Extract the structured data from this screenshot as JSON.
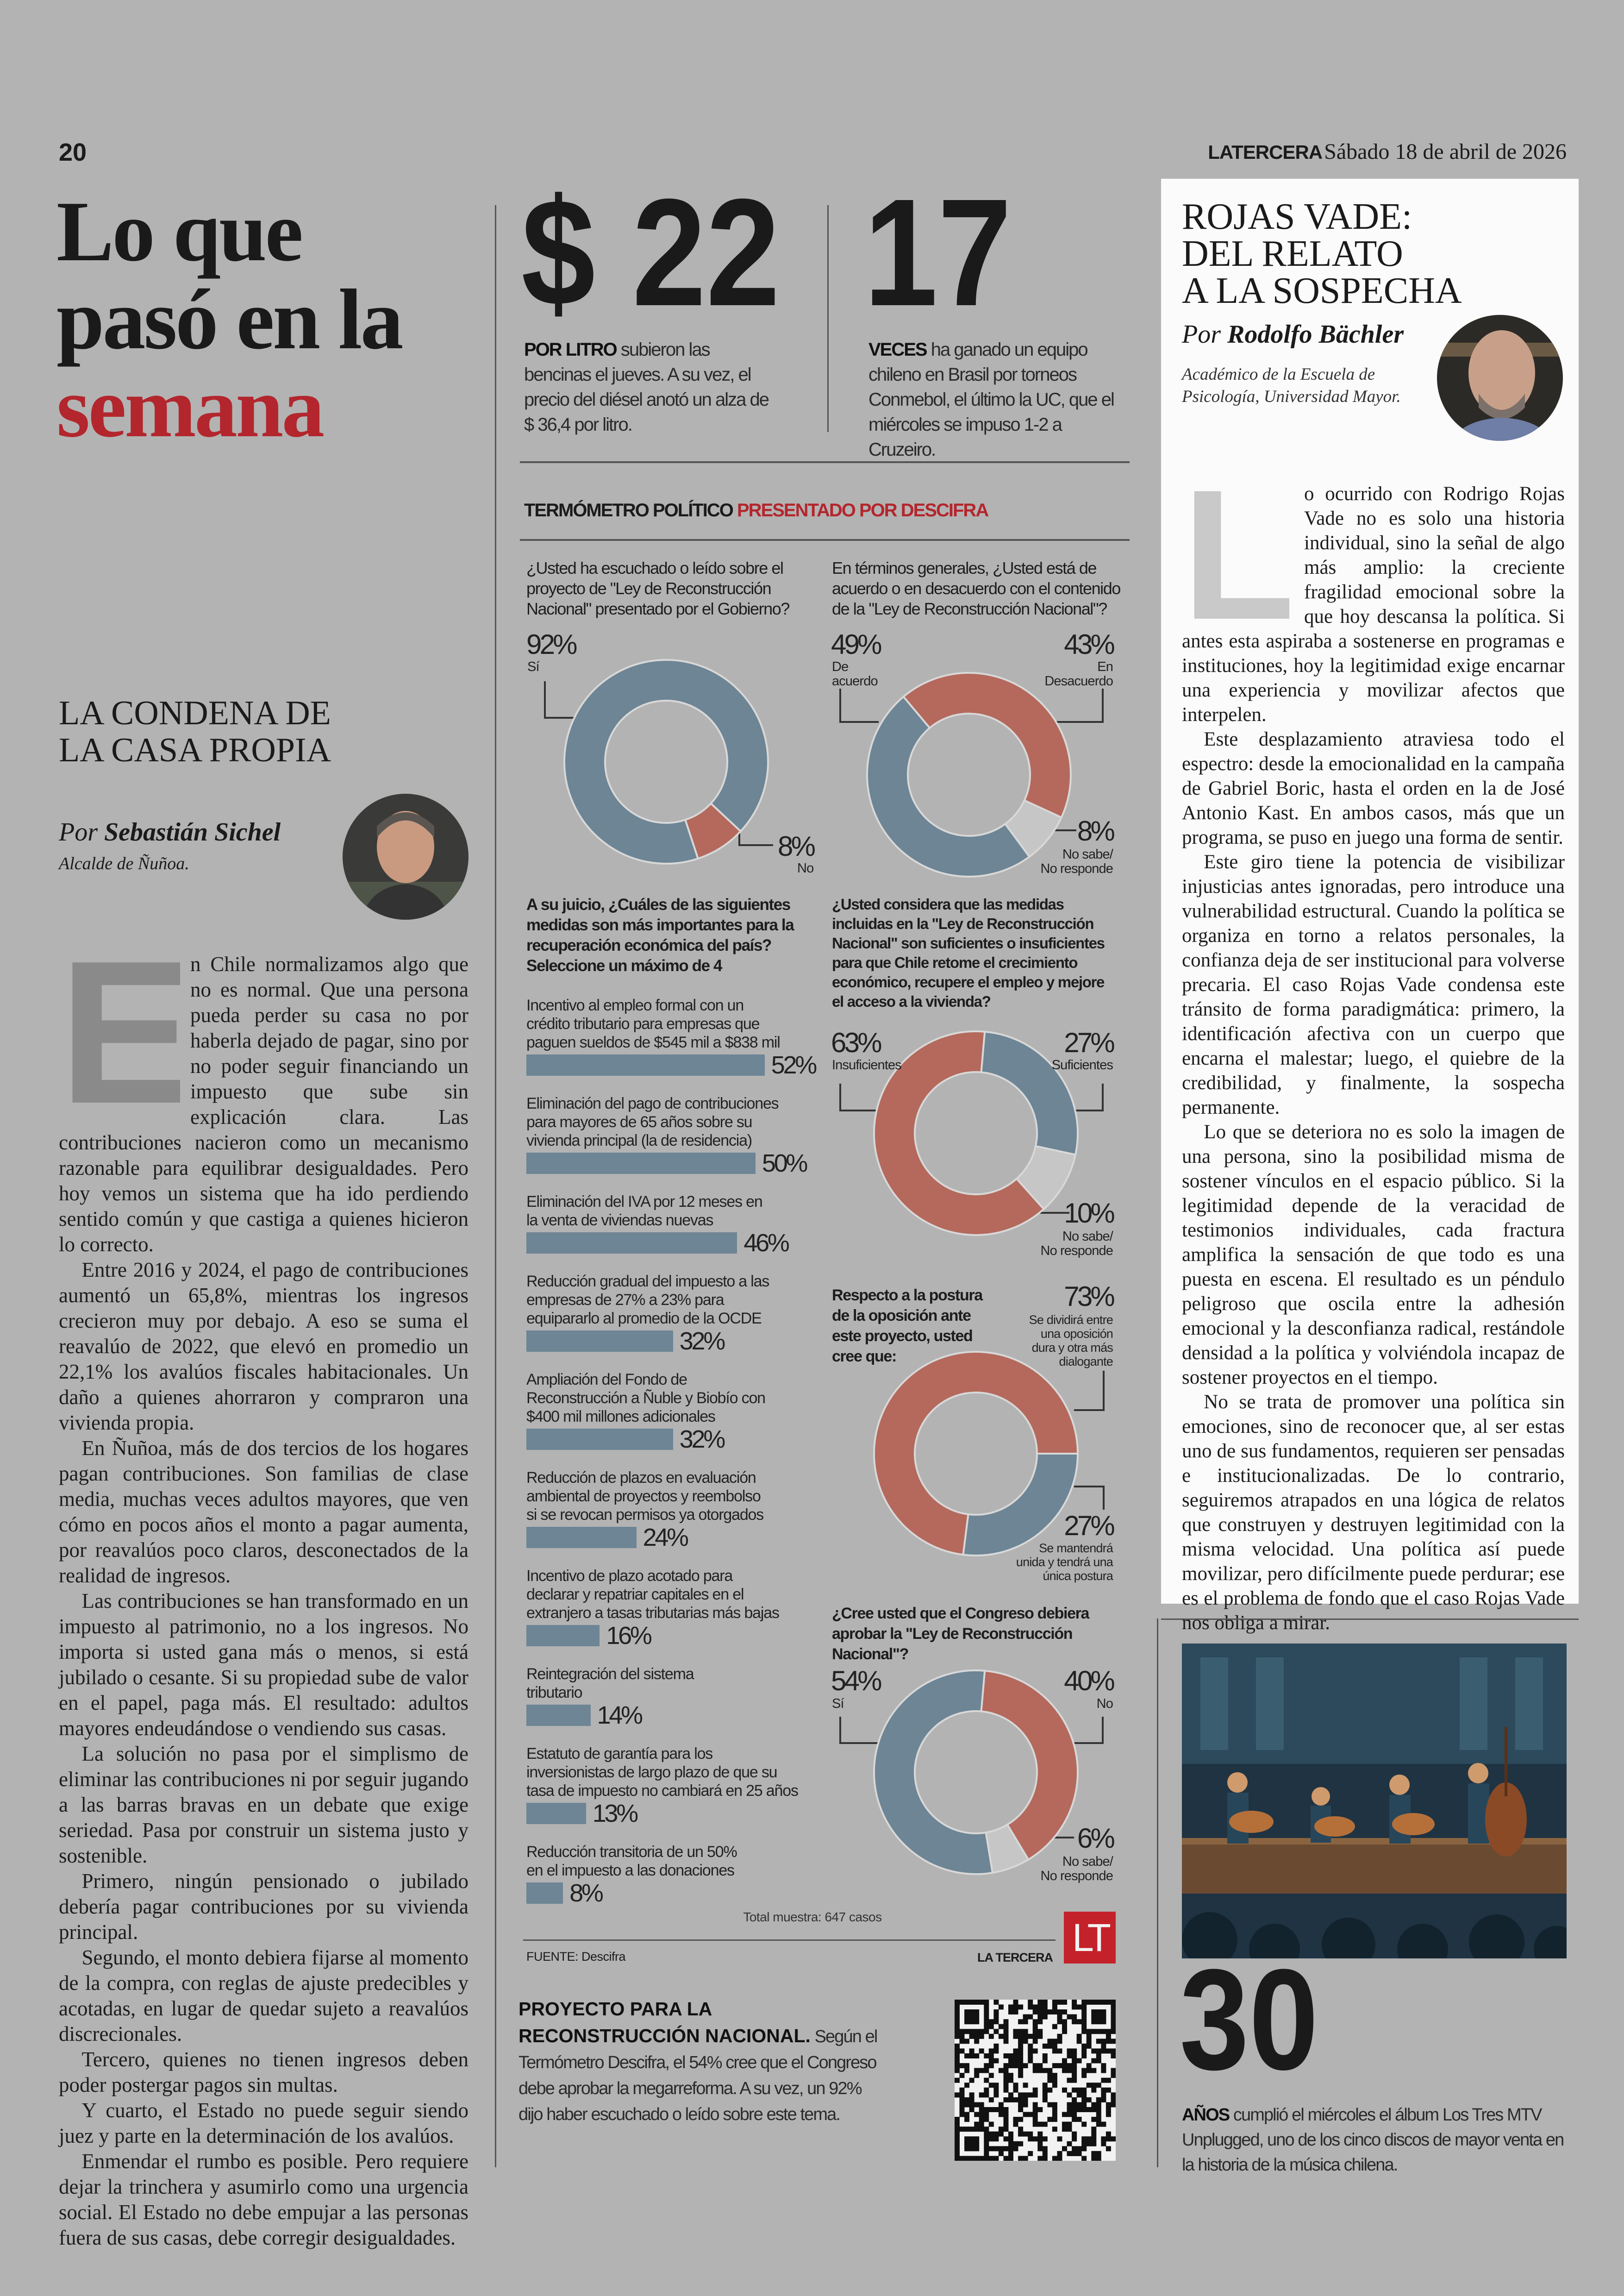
{
  "header": {
    "page_number": "20",
    "brand": "LATERCERA",
    "date": "Sábado 18 de abril de 2026"
  },
  "section_title": {
    "line1": "Lo que",
    "line2": "pasó en la",
    "line3": "semana",
    "accent_color": "#b3262d"
  },
  "column_left": {
    "headline": "LA CONDENA DE\nLA CASA PROPIA",
    "byline_prefix": "Por",
    "author": "Sebastián Sichel",
    "role": "Alcalde de Ñuñoa.",
    "dropcap": "E",
    "paragraphs": [
      "n Chile normalizamos algo que no es normal. Que una persona pueda perder su casa no por haberla dejado de pagar, sino por no poder seguir financiando un impuesto que sube sin explicación clara. Las contribuciones nacieron como un mecanismo razonable para equilibrar desigualdades. Pero hoy vemos un sistema que ha ido perdiendo sentido común y que castiga a quienes hicieron lo correcto.",
      "Entre 2016 y 2024, el pago de contribuciones aumentó un 65,8%, mientras los ingresos crecieron muy por debajo. A eso se suma el reavalúo de 2022, que elevó en promedio un 22,1% los avalúos fiscales habitacionales. Un daño a quienes ahorraron y compraron una vivienda propia.",
      "En Ñuñoa, más de dos tercios de los hogares pagan contribuciones. Son familias de clase media, muchas veces adultos mayores, que ven cómo en pocos años el monto a pagar aumenta, por reavalúos poco claros, desconectados de la realidad de ingresos.",
      "Las contribuciones se han transformado en un impuesto al patrimonio, no a los ingresos. No importa si usted gana más o menos, si está jubilado o cesante. Si su propiedad sube de valor en el papel, paga más. El resultado: adultos mayores endeudándose o vendiendo sus casas.",
      "La solución no pasa por el simplismo de eliminar las contribuciones ni por seguir jugando a las barras bravas en un debate que exige seriedad. Pasa por construir un sistema justo y sostenible.",
      "Primero, ningún pensionado o jubilado debería pagar contribuciones por su vivienda principal.",
      "Segundo, el monto debiera fijarse al momento de la compra, con reglas de ajuste predecibles y acotadas, en lugar de quedar sujeto a reavalúos discrecionales.",
      "Tercero, quienes no tienen ingresos deben poder postergar pagos sin multas.",
      "Y cuarto, el Estado no puede seguir siendo juez y parte en la determinación de los avalúos.",
      "Enmendar el rumbo es posible. Pero requiere dejar la trinchera y asumirlo como una urgencia social. El Estado no debe empujar a las personas fuera de sus casas, debe corregir desigualdades."
    ]
  },
  "stats": [
    {
      "number": "$ 22",
      "lead": "POR LITRO",
      "text": " subieron las bencinas el jueves. A su vez, el precio del diésel anotó un alza de $ 36,4 por litro."
    },
    {
      "number": "17",
      "lead": "VECES",
      "text": " ha ganado un equipo chileno en Brasil por torneos Conmebol, el último la UC, que el miércoles se impuso 1-2 a Cruzeiro."
    }
  ],
  "infographic": {
    "title": "TERMÓMETRO POLÍTICO",
    "title_accent": "PRESENTADO POR DESCIFRA",
    "sample": "Total muestra: 647 casos",
    "source": "FUENTE: Descifra",
    "publisher": "LA TERCERA",
    "logo_text": "LT",
    "colors": {
      "blue": "#6d8595",
      "red": "#b4695c",
      "gray": "#c6c6c6",
      "logo_red": "#c4222b"
    }
  },
  "chart_data": [
    {
      "type": "pie",
      "question": "¿Usted ha escuchado o leído sobre el\nproyecto de \"Ley de Reconstrucción\nNacional\" presentado por el Gobierno?",
      "slices": [
        {
          "label": "Sí",
          "value": 92,
          "value_label": "92%",
          "color": "#6d8595"
        },
        {
          "label": "No",
          "value": 8,
          "value_label": "8%",
          "color": "#b4695c"
        }
      ]
    },
    {
      "type": "pie",
      "question": "En términos generales, ¿Usted está de\nacuerdo o en desacuerdo con el contenido\nde la \"Ley de Reconstrucción Nacional\"?",
      "slices": [
        {
          "label": "De\nacuerdo",
          "value": 49,
          "value_label": "49%",
          "color": "#6d8595"
        },
        {
          "label": "En\nDesacuerdo",
          "value": 43,
          "value_label": "43%",
          "color": "#b4695c"
        },
        {
          "label": "No sabe/\nNo responde",
          "value": 8,
          "value_label": "8%",
          "color": "#c6c6c6"
        }
      ]
    },
    {
      "type": "bar",
      "question": "A su juicio, ¿Cuáles de las siguientes\nmedidas son más importantes para la\nrecuperación económica del país?\nSeleccione un máximo de 4",
      "unit": "%",
      "items": [
        {
          "label": "Incentivo al empleo formal con un\ncrédito tributario para empresas que\npaguen sueldos de $545 mil a $838 mil",
          "value": 52,
          "value_label": "52%"
        },
        {
          "label": "Eliminación del pago de contribuciones\npara mayores de 65 años sobre su\nvivienda principal (la de residencia)",
          "value": 50,
          "value_label": "50%"
        },
        {
          "label": "Eliminación del IVA por 12 meses en\nla venta de viviendas nuevas",
          "value": 46,
          "value_label": "46%"
        },
        {
          "label": "Reducción gradual del impuesto a las\nempresas de 27% a 23% para\nequipararlo al promedio de la OCDE",
          "value": 32,
          "value_label": "32%"
        },
        {
          "label": "Ampliación del Fondo de\nReconstrucción a Ñuble y Biobío con\n$400 mil millones adicionales",
          "value": 32,
          "value_label": "32%"
        },
        {
          "label": "Reducción de plazos en evaluación\nambiental de proyectos y reembolso\nsi se revocan permisos ya otorgados",
          "value": 24,
          "value_label": "24%"
        },
        {
          "label": "Incentivo de plazo acotado para\ndeclarar y repatriar capitales en el\nextranjero a tasas tributarias más bajas",
          "value": 16,
          "value_label": "16%"
        },
        {
          "label": "Reintegración del sistema\ntributario",
          "value": 14,
          "value_label": "14%"
        },
        {
          "label": "Estatuto de garantía para los\ninversionistas de largo plazo de que su\ntasa de impuesto no cambiará en 25 años",
          "value": 13,
          "value_label": "13%"
        },
        {
          "label": "Reducción transitoria de un 50%\nen el impuesto a las donaciones",
          "value": 8,
          "value_label": "8%"
        }
      ]
    },
    {
      "type": "pie",
      "question": "¿Usted considera que las medidas\nincluidas en la \"Ley de Reconstrucción\nNacional\" son suficientes o insuficientes\npara que Chile retome el crecimiento\neconómico, recupere el empleo y mejore\nel acceso a la vivienda?",
      "slices": [
        {
          "label": "Insuficientes",
          "value": 63,
          "value_label": "63%",
          "color": "#b4695c"
        },
        {
          "label": "Suficientes",
          "value": 27,
          "value_label": "27%",
          "color": "#6d8595"
        },
        {
          "label": "No sabe/\nNo responde",
          "value": 10,
          "value_label": "10%",
          "color": "#c6c6c6"
        }
      ]
    },
    {
      "type": "pie",
      "question": "Respecto a la postura\nde la oposición ante\neste proyecto, usted\ncree que:",
      "slices": [
        {
          "label": "Se dividirá entre\nuna oposición\ndura y otra más\ndialogante",
          "value": 73,
          "value_label": "73%",
          "color": "#b4695c"
        },
        {
          "label": "Se mantendrá\nunida y tendrá una\núnica postura",
          "value": 27,
          "value_label": "27%",
          "color": "#6d8595"
        }
      ]
    },
    {
      "type": "pie",
      "question": "¿Cree usted que el Congreso debiera\naprobar la \"Ley de Reconstrucción\nNacional\"?",
      "slices": [
        {
          "label": "Sí",
          "value": 54,
          "value_label": "54%",
          "color": "#6d8595"
        },
        {
          "label": "No",
          "value": 40,
          "value_label": "40%",
          "color": "#b4695c"
        },
        {
          "label": "No sabe/\nNo responde",
          "value": 6,
          "value_label": "6%",
          "color": "#c6c6c6"
        }
      ]
    }
  ],
  "bottom_note": {
    "lead": "PROYECTO PARA LA RECONSTRUCCIÓN NACIONAL.",
    "text": " Según el Termómetro Descifra, el 54% cree que el Congreso debe aprobar la megarreforma. A su vez, un 92% dijo haber escuchado o leído sobre este tema."
  },
  "column_right": {
    "headline": "ROJAS VADE:\nDEL RELATO\nA LA SOSPECHA",
    "byline_prefix": "Por",
    "author": "Rodolfo Bächler",
    "role": "Académico de la Escuela de\nPsicología, Universidad Mayor.",
    "dropcap": "L",
    "paragraphs": [
      "o ocurrido con Rodrigo Rojas Vade no es solo una historia individual, sino la señal de algo más amplio: la creciente fragilidad emocional sobre la que hoy descansa la política. Si antes esta aspiraba a sostenerse en programas e instituciones, hoy la legitimidad exige encarnar una experiencia y movilizar afectos que interpelen.",
      "Este desplazamiento atraviesa todo el espectro: desde la emocionalidad en la campaña de Gabriel Boric, hasta el orden en la de José Antonio Kast. En ambos casos, más que un programa, se puso en juego una forma de sentir.",
      "Este giro tiene la potencia de visibilizar injusticias antes ignoradas, pero introduce una vulnerabilidad estructural. Cuando la política se organiza en torno a relatos personales, la confianza deja de ser institucional para volverse precaria. El caso Rojas Vade condensa este tránsito de forma paradigmática: primero, la identificación afectiva con un cuerpo que encarna el malestar; luego, el quiebre de la credibilidad, y finalmente, la sospecha permanente.",
      "Lo que se deteriora no es solo la imagen de una persona, sino la posibilidad misma de sostener vínculos en el espacio público. Si la legitimidad depende de la veracidad de testimonios individuales, cada fractura amplifica la sensación de que todo es una puesta en escena. El resultado es un péndulo peligroso que oscila entre la adhesión emocional y la desconfianza radical, restándole densidad a la política y volviéndola incapaz de sostener proyectos en el tiempo.",
      "No se trata de promover una política sin emociones, sino de reconocer que, al ser estas uno de sus fundamentos, requieren ser pensadas e institucionalizadas. De lo contrario, seguiremos atrapados en una lógica de relatos que construyen y destruyen legitimidad con la misma velocidad. Una política así puede movilizar, pero difícilmente puede perdurar; ese es el problema de fondo que el caso Rojas Vade nos obliga a mirar."
    ]
  },
  "stat_30": {
    "number": "30",
    "lead": "AÑOS",
    "text": " cumplió el miércoles el álbum Los Tres MTV Unplugged, uno de los cinco discos de mayor venta en la historia de la música chilena."
  }
}
